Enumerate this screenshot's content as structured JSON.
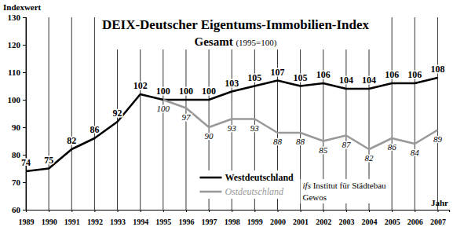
{
  "chart_data": {
    "type": "line",
    "title": "DEIX-Deutscher Eigentums-Immobilien-Index",
    "subtitle": "Gesamt (1995=100)",
    "y_label": "Indexwert",
    "x_label": "Jahr",
    "annotations": [
      "ifs Institut für Städtebau",
      "Gewos"
    ],
    "x": [
      1989,
      1990,
      1991,
      1992,
      1993,
      1994,
      1995,
      1996,
      1997,
      1998,
      1999,
      2000,
      2001,
      2002,
      2003,
      2004,
      2005,
      2006,
      2007
    ],
    "series": [
      {
        "name": "Westdeutschland",
        "color": "#000000",
        "values": [
          74,
          75,
          82,
          86,
          92,
          102,
          100,
          100,
          100,
          103,
          105,
          107,
          105,
          106,
          104,
          104,
          106,
          106,
          108
        ]
      },
      {
        "name": "Ostdeutschland",
        "color": "#999999",
        "values": [
          null,
          null,
          null,
          null,
          null,
          null,
          100,
          97,
          90,
          93,
          93,
          88,
          88,
          85,
          87,
          82,
          86,
          84,
          89
        ]
      }
    ],
    "xlim": [
      1989,
      2007.5
    ],
    "xticks": [
      1989,
      1990,
      1991,
      1992,
      1993,
      1994,
      1995,
      1996,
      1997,
      1998,
      1999,
      2000,
      2001,
      2002,
      2003,
      2004,
      2005,
      2006,
      2007
    ],
    "ylim": [
      60,
      130
    ],
    "yticks": [
      60,
      70,
      80,
      90,
      100,
      110,
      120,
      130
    ],
    "grid": "x",
    "legend": "bottom",
    "data_labels": true
  }
}
